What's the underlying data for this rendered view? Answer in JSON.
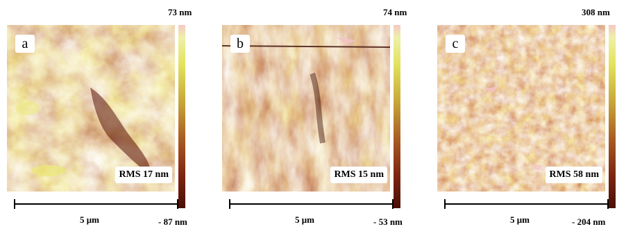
{
  "panels": [
    {
      "letter": "a",
      "rms": "RMS 17 nm",
      "max": "73 nm",
      "min": "- 87 nm",
      "scale": "5 μm"
    },
    {
      "letter": "b",
      "rms": "RMS 15 nm",
      "max": "74 nm",
      "min": "- 53 nm",
      "scale": "5 μm"
    },
    {
      "letter": "c",
      "rms": "RMS 58 nm",
      "max": "308 nm",
      "min": "- 204 nm",
      "scale": "5 μm"
    }
  ],
  "colors": {
    "light": "#e6e34f",
    "mid": "#a6541e",
    "dark": "#5a1008",
    "highlight": "#f2c4c4"
  }
}
